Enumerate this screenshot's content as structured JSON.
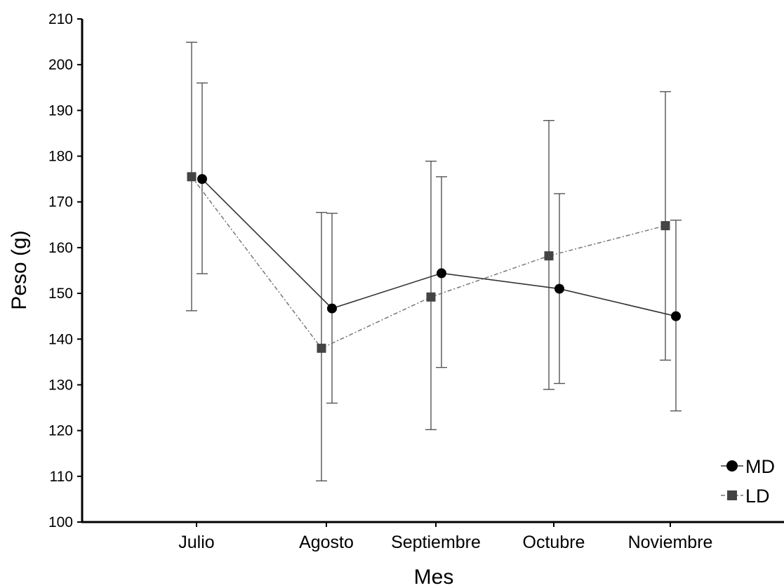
{
  "chart_data": {
    "type": "line",
    "title": "",
    "xlabel": "Mes",
    "ylabel": "Peso (g)",
    "ylim": [
      100,
      210
    ],
    "yticks": [
      100,
      110,
      120,
      130,
      140,
      150,
      160,
      170,
      180,
      190,
      200,
      210
    ],
    "categories": [
      "Julio",
      "Agosto",
      "Septiembre",
      "Octubre",
      "Noviembre"
    ],
    "grid": false,
    "legend_position": "bottom-right",
    "error_bars": true,
    "series": [
      {
        "name": "MD",
        "marker": "circle",
        "line_style": "solid",
        "color": "#000000",
        "values": [
          175.0,
          146.7,
          154.4,
          151.0,
          145.0
        ],
        "upper": [
          196.0,
          167.5,
          175.5,
          171.8,
          166.0
        ],
        "lower": [
          154.3,
          126.0,
          133.8,
          130.3,
          124.3
        ]
      },
      {
        "name": "LD",
        "marker": "square",
        "line_style": "dashed",
        "color": "#444444",
        "values": [
          175.5,
          138.0,
          149.2,
          158.2,
          164.8
        ],
        "upper": [
          204.9,
          167.7,
          178.9,
          187.8,
          194.1
        ],
        "lower": [
          146.2,
          109.0,
          120.2,
          129.0,
          135.4
        ]
      }
    ]
  }
}
